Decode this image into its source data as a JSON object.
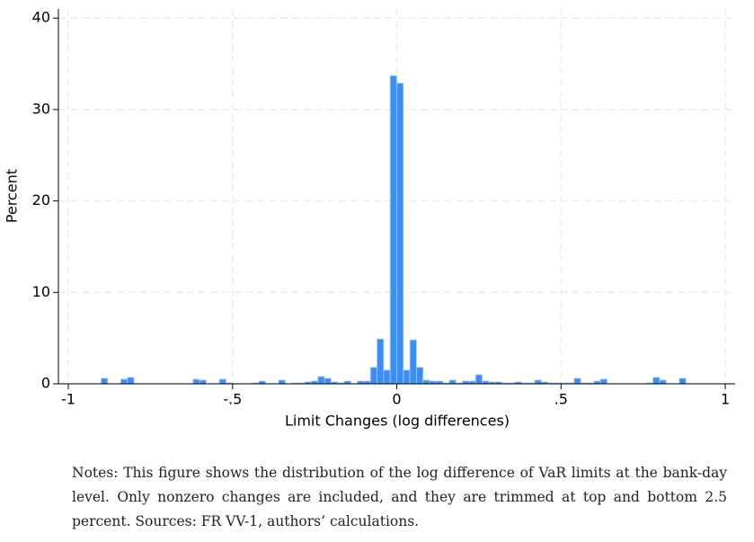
{
  "chart_data": {
    "type": "histogram",
    "xlabel": "Limit Changes (log differences)",
    "ylabel": "Percent",
    "note": "Notes: This figure shows the distribution of the log difference of VaR limits at the bank-day level. Only nonzero changes are included, and they are trimmed at top and bottom 2.5 percent. Sources: FR VV-1, authors’ calculations.",
    "color": "#3d8df2",
    "edgecolor": "#a8cdf8",
    "grid": true,
    "bins": [
      -1,
      -0.98,
      -0.96,
      -0.94,
      -0.92,
      -0.9,
      -0.88,
      -0.86,
      -0.84,
      -0.82,
      -0.8,
      -0.78,
      -0.76,
      -0.74,
      -0.72,
      -0.7,
      -0.68,
      -0.66,
      -0.64,
      -0.62,
      -0.6,
      -0.58,
      -0.56,
      -0.54,
      -0.52,
      -0.5,
      -0.48,
      -0.46,
      -0.44,
      -0.42,
      -0.4,
      -0.38,
      -0.36,
      -0.34,
      -0.32,
      -0.3,
      -0.28,
      -0.26,
      -0.24,
      -0.22,
      -0.2,
      -0.18,
      -0.16,
      -0.14,
      -0.12,
      -0.1,
      -0.08,
      -0.06,
      -0.04,
      -0.02,
      0,
      0.02,
      0.04,
      0.06,
      0.08,
      0.1,
      0.12,
      0.14,
      0.16,
      0.18,
      0.2,
      0.22,
      0.24,
      0.26,
      0.28,
      0.3,
      0.32,
      0.34,
      0.36,
      0.38,
      0.4,
      0.42,
      0.44,
      0.46,
      0.48,
      0.5,
      0.52,
      0.54,
      0.56,
      0.58,
      0.6,
      0.62,
      0.64,
      0.66,
      0.68,
      0.7,
      0.72,
      0.74,
      0.76,
      0.78,
      0.8,
      0.82,
      0.84,
      0.86,
      0.88,
      0.9,
      0.92,
      0.94,
      0.96,
      0.98,
      1
    ],
    "values": [
      0,
      0,
      0,
      0,
      0,
      0.6,
      0,
      0,
      0.5,
      0.7,
      0,
      0,
      0,
      0,
      0,
      0,
      0,
      0,
      0,
      0.5,
      0.4,
      0,
      0,
      0.5,
      0.1,
      0,
      0,
      0,
      0.1,
      0.3,
      0,
      0,
      0.4,
      0,
      0.1,
      0.1,
      0.2,
      0.3,
      0.8,
      0.6,
      0.2,
      0.1,
      0.3,
      0,
      0.3,
      0.3,
      1.8,
      4.9,
      1.5,
      33.7,
      32.9,
      1.5,
      4.8,
      1.8,
      0.4,
      0.3,
      0.3,
      0.1,
      0.4,
      0.1,
      0.3,
      0.3,
      1.0,
      0.3,
      0.2,
      0.2,
      0.1,
      0.1,
      0.2,
      0.1,
      0.1,
      0.4,
      0.2,
      0.1,
      0.1,
      0.1,
      0.1,
      0.6,
      0.1,
      0.1,
      0.3,
      0.5,
      0,
      0,
      0,
      0,
      0,
      0,
      0.1,
      0.7,
      0.4,
      0,
      0,
      0.6,
      0,
      0,
      0,
      0,
      0,
      0
    ],
    "xlim": [
      -1.03,
      1.03
    ],
    "ylim": [
      0,
      41
    ],
    "xticks": [
      -1,
      {
        "value": -0.5,
        "label": "-.5"
      },
      0,
      {
        "value": 0.5,
        "label": ".5"
      },
      1
    ],
    "yticks": [
      0,
      10,
      20,
      30,
      40
    ]
  }
}
